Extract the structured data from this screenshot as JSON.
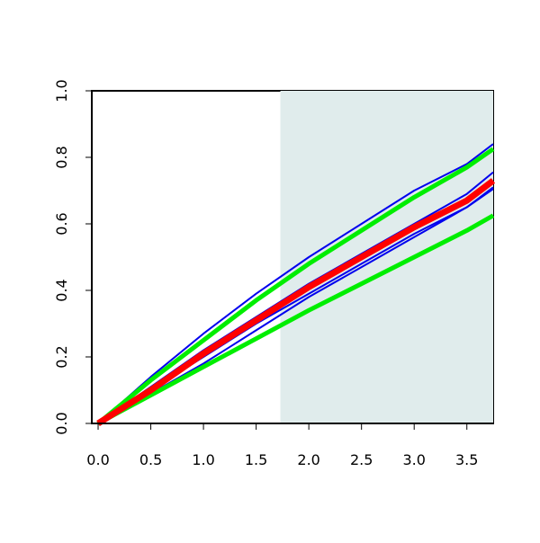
{
  "chart_data": {
    "type": "line",
    "x": [
      0,
      0.5,
      1,
      1.5,
      2,
      2.5,
      3,
      3.5,
      3.75
    ],
    "series": [
      {
        "color": "#0000ee",
        "width": 2,
        "values": [
          0,
          0.14,
          0.27,
          0.39,
          0.5,
          0.6,
          0.7,
          0.78,
          0.84
        ]
      },
      {
        "color": "#0000ee",
        "width": 2,
        "values": [
          0,
          0.11,
          0.22,
          0.32,
          0.42,
          0.51,
          0.6,
          0.69,
          0.755
        ]
      },
      {
        "color": "#0000ee",
        "width": 2,
        "values": [
          0,
          0.1,
          0.2,
          0.3,
          0.39,
          0.48,
          0.57,
          0.65,
          0.71
        ]
      },
      {
        "color": "#0000ee",
        "width": 2,
        "values": [
          0,
          0.09,
          0.18,
          0.28,
          0.38,
          0.47,
          0.56,
          0.65,
          0.705
        ]
      },
      {
        "color": "#00ee00",
        "width": 5,
        "values": [
          0,
          0.13,
          0.25,
          0.37,
          0.48,
          0.58,
          0.68,
          0.77,
          0.825
        ]
      },
      {
        "color": "#00ee00",
        "width": 5,
        "values": [
          0,
          0.085,
          0.17,
          0.255,
          0.34,
          0.42,
          0.5,
          0.58,
          0.625
        ]
      },
      {
        "color": "#ff0000",
        "width": 7,
        "values": [
          0,
          0.1,
          0.21,
          0.31,
          0.41,
          0.5,
          0.59,
          0.67,
          0.73
        ]
      }
    ],
    "shade_from": 1.73,
    "shade_color": "#e0ecec",
    "xlim": [
      -0.06,
      3.75
    ],
    "ylim": [
      0,
      1
    ],
    "xticks": [
      {
        "value": 0,
        "label": "0.0"
      },
      0.5,
      {
        "value": 1,
        "label": "1.0"
      },
      1.5,
      {
        "value": 2,
        "label": "2.0"
      },
      2.5,
      {
        "value": 3,
        "label": "3.0"
      },
      3.5
    ],
    "yticks": [
      {
        "value": 0,
        "label": "0.0"
      },
      0.2,
      0.4,
      0.6,
      0.8,
      {
        "value": 1,
        "label": "1.0"
      }
    ]
  }
}
